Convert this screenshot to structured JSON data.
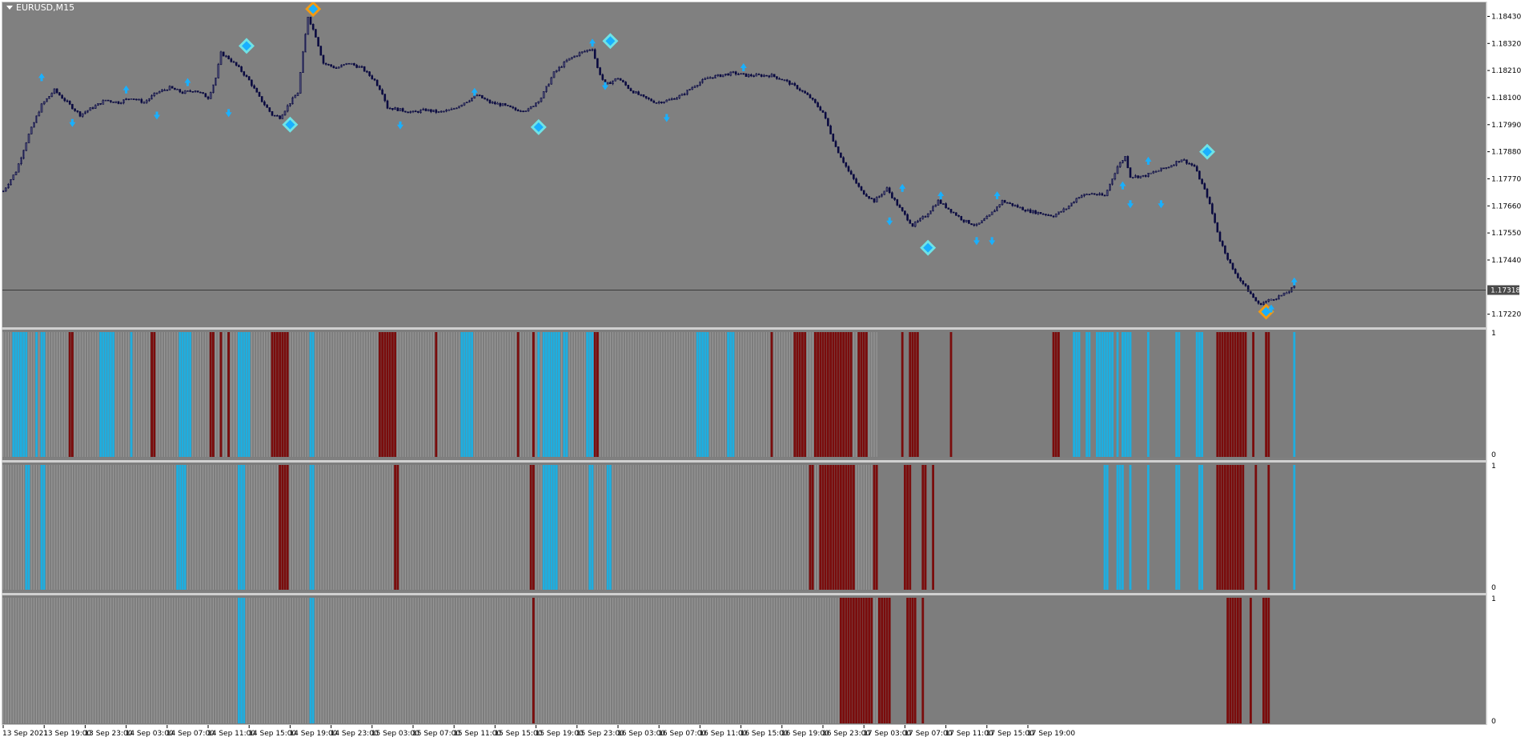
{
  "window": {
    "title": "EURUSD,M15",
    "menu_icon": "triangle-down-icon"
  },
  "colors": {
    "background": "#808080",
    "frame": "#c8c8c8",
    "candle": "#0a0a40",
    "marker_blue": "#19b0ff",
    "marker_cyan": "#6fe3e6",
    "marker_orange": "#f39a12",
    "bar_blue": "#1eaee0",
    "bar_red": "#7a0c0c",
    "bar_grey": "#9a9a9a"
  },
  "price_axis": {
    "labels": [
      "1.18430",
      "1.18320",
      "1.18210",
      "1.18100",
      "1.17990",
      "1.17880",
      "1.17770",
      "1.17660",
      "1.17550",
      "1.17440",
      "1.17220"
    ],
    "current_price": "1.17318"
  },
  "time_axis": {
    "labels": [
      "13 Sep 2021",
      "13 Sep 19:00",
      "13 Sep 23:00",
      "14 Sep 03:00",
      "14 Sep 07:00",
      "14 Sep 11:00",
      "14 Sep 15:00",
      "14 Sep 19:00",
      "14 Sep 23:00",
      "15 Sep 03:00",
      "15 Sep 07:00",
      "15 Sep 11:00",
      "15 Sep 15:00",
      "15 Sep 19:00",
      "15 Sep 23:00",
      "16 Sep 03:00",
      "16 Sep 07:00",
      "16 Sep 11:00",
      "16 Sep 15:00",
      "16 Sep 19:00",
      "16 Sep 23:00",
      "17 Sep 03:00",
      "17 Sep 07:00",
      "17 Sep 11:00",
      "17 Sep 15:00",
      "17 Sep 19:00"
    ]
  },
  "subwindows": [
    {
      "max_label": "1",
      "min_label": "0"
    },
    {
      "max_label": "1",
      "min_label": "0"
    },
    {
      "max_label": "1",
      "min_label": "0"
    }
  ],
  "chart_data": [
    {
      "type": "line",
      "symbol": "EURUSD",
      "timeframe": "M15",
      "ylim": [
        1.1717,
        1.1849
      ],
      "bars": 342,
      "path": [
        [
          0,
          1.1772
        ],
        [
          5,
          1.178
        ],
        [
          10,
          1.1795
        ],
        [
          15,
          1.1807
        ],
        [
          20,
          1.1813
        ],
        [
          25,
          1.1808
        ],
        [
          30,
          1.1803
        ],
        [
          35,
          1.1806
        ],
        [
          40,
          1.1809
        ],
        [
          45,
          1.1808
        ],
        [
          50,
          1.181
        ],
        [
          55,
          1.1808
        ],
        [
          60,
          1.1812
        ],
        [
          65,
          1.1814
        ],
        [
          70,
          1.1812
        ],
        [
          75,
          1.1813
        ],
        [
          80,
          1.181
        ],
        [
          83,
          1.1818
        ],
        [
          85,
          1.1828
        ],
        [
          88,
          1.1826
        ],
        [
          92,
          1.1822
        ],
        [
          96,
          1.1817
        ],
        [
          100,
          1.181
        ],
        [
          105,
          1.1803
        ],
        [
          108,
          1.1802
        ],
        [
          112,
          1.1808
        ],
        [
          115,
          1.1812
        ],
        [
          117,
          1.1828
        ],
        [
          119,
          1.1843
        ],
        [
          122,
          1.1835
        ],
        [
          125,
          1.1824
        ],
        [
          130,
          1.1822
        ],
        [
          135,
          1.1824
        ],
        [
          140,
          1.1822
        ],
        [
          145,
          1.1817
        ],
        [
          148,
          1.1812
        ],
        [
          150,
          1.1806
        ],
        [
          155,
          1.1805
        ],
        [
          160,
          1.1804
        ],
        [
          165,
          1.1805
        ],
        [
          170,
          1.1804
        ],
        [
          175,
          1.1805
        ],
        [
          180,
          1.1808
        ],
        [
          185,
          1.1811
        ],
        [
          190,
          1.1808
        ],
        [
          195,
          1.1807
        ],
        [
          200,
          1.1805
        ],
        [
          205,
          1.1805
        ],
        [
          210,
          1.181
        ],
        [
          215,
          1.182
        ],
        [
          220,
          1.1825
        ],
        [
          225,
          1.1828
        ],
        [
          230,
          1.183
        ],
        [
          232,
          1.1822
        ],
        [
          235,
          1.1815
        ],
        [
          240,
          1.1818
        ],
        [
          245,
          1.1813
        ],
        [
          250,
          1.181
        ],
        [
          255,
          1.1808
        ],
        [
          260,
          1.1809
        ],
        [
          265,
          1.1811
        ],
        [
          270,
          1.1815
        ],
        [
          275,
          1.1818
        ],
        [
          280,
          1.1819
        ],
        [
          285,
          1.182
        ],
        [
          290,
          1.1819
        ],
        [
          295,
          1.1819
        ],
        [
          300,
          1.1819
        ],
        [
          305,
          1.1817
        ],
        [
          310,
          1.1814
        ],
        [
          315,
          1.181
        ],
        [
          320,
          1.1804
        ],
        [
          325,
          1.179
        ],
        [
          330,
          1.178
        ],
        [
          335,
          1.1772
        ],
        [
          340,
          1.1768
        ],
        [
          345,
          1.1773
        ],
        [
          350,
          1.1765
        ],
        [
          355,
          1.1758
        ],
        [
          360,
          1.1762
        ],
        [
          365,
          1.1768
        ],
        [
          370,
          1.1764
        ],
        [
          375,
          1.176
        ],
        [
          380,
          1.1758
        ],
        [
          385,
          1.1762
        ],
        [
          390,
          1.1768
        ],
        [
          395,
          1.1766
        ],
        [
          400,
          1.1764
        ],
        [
          405,
          1.1763
        ],
        [
          410,
          1.1762
        ],
        [
          415,
          1.1765
        ],
        [
          420,
          1.177
        ],
        [
          425,
          1.1771
        ],
        [
          430,
          1.177
        ],
        [
          435,
          1.1782
        ],
        [
          438,
          1.1786
        ],
        [
          440,
          1.1778
        ],
        [
          445,
          1.1778
        ],
        [
          450,
          1.178
        ],
        [
          455,
          1.1782
        ],
        [
          460,
          1.1785
        ],
        [
          465,
          1.1782
        ],
        [
          470,
          1.177
        ],
        [
          475,
          1.1752
        ],
        [
          480,
          1.174
        ],
        [
          485,
          1.1733
        ],
        [
          490,
          1.1726
        ],
        [
          495,
          1.1728
        ],
        [
          500,
          1.173
        ],
        [
          504,
          1.1733
        ]
      ],
      "signals": [
        {
          "bar": 15,
          "price": 1.1818,
          "kind": "arrow-up"
        },
        {
          "bar": 27,
          "price": 1.18,
          "kind": "arrow-down"
        },
        {
          "bar": 48,
          "price": 1.1813,
          "kind": "arrow-up"
        },
        {
          "bar": 60,
          "price": 1.1803,
          "kind": "arrow-down"
        },
        {
          "bar": 72,
          "price": 1.1816,
          "kind": "arrow-up"
        },
        {
          "bar": 88,
          "price": 1.1804,
          "kind": "arrow-down"
        },
        {
          "bar": 95,
          "price": 1.1831,
          "kind": "diamond-cyan"
        },
        {
          "bar": 112,
          "price": 1.1799,
          "kind": "diamond-cyan"
        },
        {
          "bar": 121,
          "price": 1.1846,
          "kind": "diamond-orange"
        },
        {
          "bar": 155,
          "price": 1.1799,
          "kind": "arrow-down"
        },
        {
          "bar": 184,
          "price": 1.1812,
          "kind": "arrow-up"
        },
        {
          "bar": 209,
          "price": 1.1798,
          "kind": "diamond-cyan"
        },
        {
          "bar": 230,
          "price": 1.1832,
          "kind": "arrow-up"
        },
        {
          "bar": 237,
          "price": 1.1833,
          "kind": "diamond-cyan"
        },
        {
          "bar": 235,
          "price": 1.1815,
          "kind": "arrow-down"
        },
        {
          "bar": 259,
          "price": 1.1802,
          "kind": "arrow-down"
        },
        {
          "bar": 289,
          "price": 1.1822,
          "kind": "arrow-up"
        },
        {
          "bar": 346,
          "price": 1.176,
          "kind": "arrow-down"
        },
        {
          "bar": 351,
          "price": 1.1773,
          "kind": "arrow-up"
        },
        {
          "bar": 361,
          "price": 1.1749,
          "kind": "diamond-cyan"
        },
        {
          "bar": 366,
          "price": 1.177,
          "kind": "arrow-up"
        },
        {
          "bar": 380,
          "price": 1.1752,
          "kind": "arrow-down"
        },
        {
          "bar": 386,
          "price": 1.1752,
          "kind": "arrow-down"
        },
        {
          "bar": 388,
          "price": 1.177,
          "kind": "arrow-up"
        },
        {
          "bar": 437,
          "price": 1.1774,
          "kind": "arrow-up"
        },
        {
          "bar": 440,
          "price": 1.1767,
          "kind": "arrow-down"
        },
        {
          "bar": 447,
          "price": 1.1784,
          "kind": "arrow-up"
        },
        {
          "bar": 452,
          "price": 1.1767,
          "kind": "arrow-down"
        },
        {
          "bar": 470,
          "price": 1.1788,
          "kind": "diamond-cyan"
        },
        {
          "bar": 493,
          "price": 1.1723,
          "kind": "diamond-orange"
        },
        {
          "bar": 495,
          "price": 1.1724,
          "kind": "arrow-up"
        },
        {
          "bar": 504,
          "price": 1.1735,
          "kind": "arrow-up"
        }
      ]
    },
    {
      "type": "bar",
      "name": "signal subwindow 1",
      "ylim": [
        0,
        1
      ],
      "blue_bars": [
        [
          4,
          9
        ],
        [
          13,
          13
        ],
        [
          15,
          16
        ],
        [
          38,
          43
        ],
        [
          50,
          50
        ],
        [
          69,
          73
        ],
        [
          92,
          96
        ],
        [
          120,
          121
        ],
        [
          179,
          183
        ],
        [
          209,
          209
        ],
        [
          211,
          217
        ],
        [
          219,
          220
        ],
        [
          228,
          231
        ],
        [
          271,
          275
        ],
        [
          283,
          285
        ],
        [
          418,
          420
        ],
        [
          423,
          424
        ],
        [
          427,
          433
        ],
        [
          435,
          435
        ],
        [
          437,
          440
        ],
        [
          447,
          447
        ],
        [
          458,
          459
        ],
        [
          466,
          468
        ],
        [
          504,
          504
        ]
      ],
      "red_bars": [
        [
          26,
          27
        ],
        [
          58,
          59
        ],
        [
          81,
          82
        ],
        [
          85,
          85
        ],
        [
          88,
          88
        ],
        [
          105,
          111
        ],
        [
          147,
          153
        ],
        [
          169,
          169
        ],
        [
          201,
          201
        ],
        [
          207,
          207
        ],
        [
          231,
          232
        ],
        [
          300,
          300
        ],
        [
          309,
          313
        ],
        [
          317,
          331
        ],
        [
          334,
          337
        ],
        [
          351,
          351
        ],
        [
          354,
          357
        ],
        [
          370,
          370
        ],
        [
          410,
          412
        ],
        [
          474,
          485
        ],
        [
          488,
          488
        ],
        [
          493,
          494
        ]
      ]
    },
    {
      "type": "bar",
      "name": "signal subwindow 2",
      "ylim": [
        0,
        1
      ],
      "blue_bars": [
        [
          9,
          10
        ],
        [
          15,
          16
        ],
        [
          68,
          71
        ],
        [
          92,
          94
        ],
        [
          120,
          121
        ],
        [
          211,
          216
        ],
        [
          229,
          230
        ],
        [
          236,
          237
        ],
        [
          430,
          431
        ],
        [
          435,
          437
        ],
        [
          440,
          440
        ],
        [
          447,
          447
        ],
        [
          458,
          459
        ],
        [
          467,
          468
        ],
        [
          504,
          504
        ]
      ],
      "red_bars": [
        [
          108,
          111
        ],
        [
          153,
          154
        ],
        [
          206,
          207
        ],
        [
          315,
          316
        ],
        [
          319,
          332
        ],
        [
          340,
          341
        ],
        [
          352,
          354
        ],
        [
          359,
          360
        ],
        [
          363,
          363
        ],
        [
          474,
          484
        ],
        [
          489,
          489
        ],
        [
          494,
          494
        ]
      ]
    },
    {
      "type": "bar",
      "name": "signal subwindow 3",
      "ylim": [
        0,
        1
      ],
      "blue_bars": [
        [
          92,
          94
        ],
        [
          120,
          121
        ]
      ],
      "red_bars": [
        [
          207,
          207
        ],
        [
          327,
          339
        ],
        [
          342,
          346
        ],
        [
          353,
          356
        ],
        [
          359,
          359
        ],
        [
          478,
          483
        ],
        [
          487,
          487
        ],
        [
          492,
          494
        ]
      ]
    }
  ]
}
